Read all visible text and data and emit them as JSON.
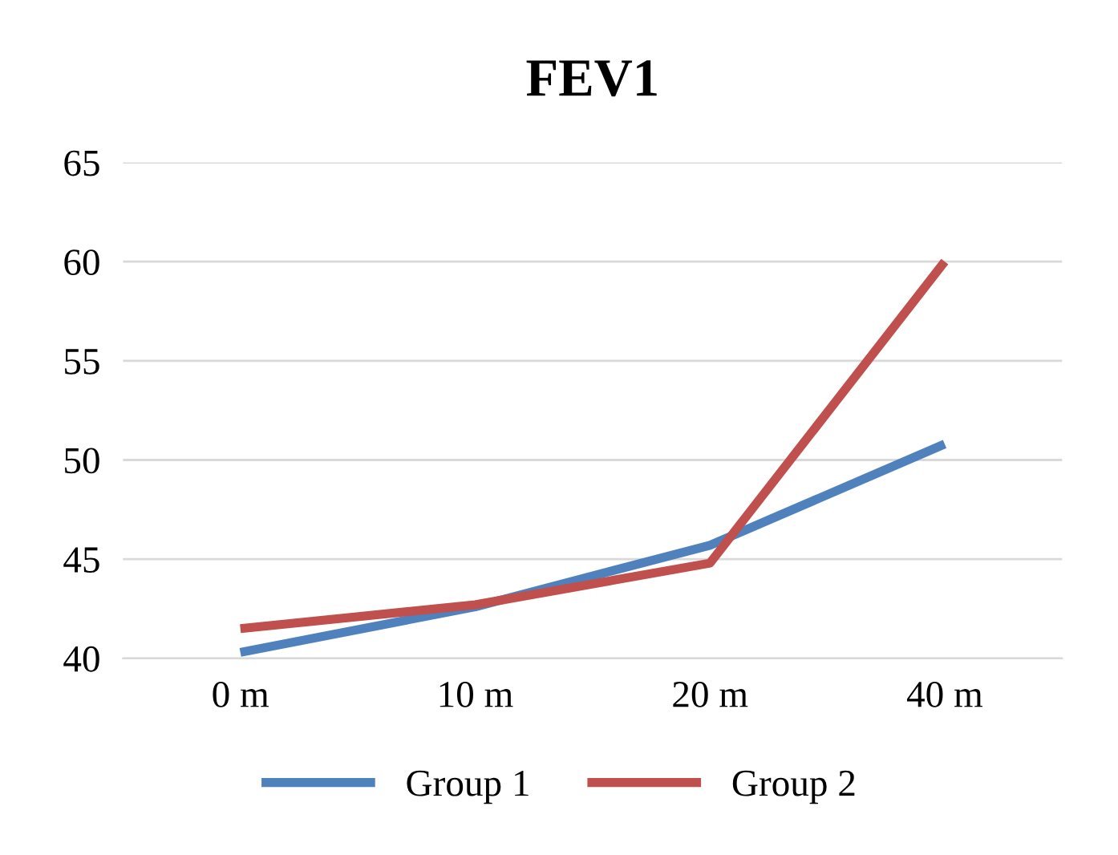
{
  "chart_data": {
    "type": "line",
    "title": "FEV1",
    "categories": [
      "0 m",
      "10 m",
      "20 m",
      "40 m"
    ],
    "series": [
      {
        "name": "Group 1",
        "color": "#4f81bd",
        "values": [
          40.3,
          42.6,
          45.7,
          50.8
        ]
      },
      {
        "name": "Group 2",
        "color": "#c0504d",
        "values": [
          41.5,
          42.7,
          44.8,
          60.0
        ]
      }
    ],
    "ylim": [
      40,
      65
    ],
    "yticks": [
      40,
      45,
      50,
      55,
      60,
      65
    ],
    "grid": "y",
    "legend": "bottom",
    "marker": "none",
    "line_style": "solid"
  }
}
